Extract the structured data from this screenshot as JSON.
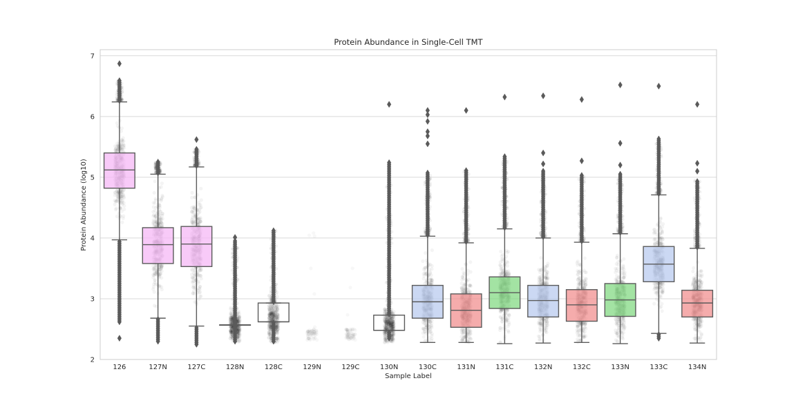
{
  "chart_data": {
    "type": "box",
    "title": "Protein Abundance in Single-Cell TMT",
    "xlabel": "Sample Label",
    "ylabel": "Protein Abundance (log10)",
    "ylim": [
      2,
      7.1
    ],
    "yticks": [
      "2",
      "3",
      "4",
      "5",
      "6",
      "7"
    ],
    "grid": "horizontal",
    "categories": [
      "126",
      "127N",
      "127C",
      "128N",
      "128C",
      "129N",
      "129C",
      "130N",
      "130C",
      "131N",
      "131C",
      "132N",
      "132C",
      "133N",
      "133C",
      "134N"
    ],
    "colors": {
      "pink": "#f5b8f5",
      "blue": "#b9cbef",
      "red": "#f29090",
      "green": "#84d984",
      "edge": "#5a5a5a",
      "grid": "#d9d9d9",
      "frame": "#cccccc",
      "points": "#000000"
    },
    "boxes": [
      {
        "label": "126",
        "fill": "pink",
        "q1": 4.82,
        "median": 5.12,
        "q3": 5.4,
        "whisker_low": 3.97,
        "whisker_high": 6.24,
        "outliers_high_from": 6.26,
        "outliers_high_to": 6.6,
        "outliers_low_from": 2.62,
        "outliers_low_to": 3.95,
        "extreme_points": [
          6.87,
          2.35
        ],
        "density_center": 5.1,
        "density_spread": 0.3
      },
      {
        "label": "127N",
        "fill": "pink",
        "q1": 3.58,
        "median": 3.89,
        "q3": 4.17,
        "whisker_low": 2.68,
        "whisker_high": 5.05,
        "outliers_high_from": 5.07,
        "outliers_high_to": 5.26,
        "outliers_low_from": 2.3,
        "outliers_low_to": 2.66,
        "extreme_points": [],
        "density_center": 3.88,
        "density_spread": 0.35
      },
      {
        "label": "127C",
        "fill": "pink",
        "q1": 3.53,
        "median": 3.9,
        "q3": 4.19,
        "whisker_low": 2.55,
        "whisker_high": 5.17,
        "outliers_high_from": 5.19,
        "outliers_high_to": 5.47,
        "outliers_low_from": 2.25,
        "outliers_low_to": 2.53,
        "extreme_points": [
          5.62
        ],
        "density_center": 3.88,
        "density_spread": 0.38
      },
      {
        "label": "128N",
        "fill": "none",
        "q1": 2.57,
        "median": 2.57,
        "q3": 2.57,
        "whisker_low": 2.57,
        "whisker_high": 2.57,
        "outliers_high_from": 2.6,
        "outliers_high_to": 3.95,
        "outliers_low_from": 2.3,
        "outliers_low_to": 2.54,
        "extreme_points": [
          4.01
        ],
        "density_center": 2.55,
        "density_spread": 0.12
      },
      {
        "label": "128C",
        "fill": "none",
        "q1": 2.62,
        "median": 2.62,
        "q3": 2.93,
        "whisker_low": 2.62,
        "whisker_high": 2.93,
        "outliers_high_from": 2.95,
        "outliers_high_to": 4.13,
        "outliers_low_from": 2.3,
        "outliers_low_to": 2.6,
        "extreme_points": [],
        "density_center": 2.62,
        "density_spread": 0.18
      },
      {
        "label": "129N",
        "fill": "none",
        "q1": null,
        "median": null,
        "q3": null,
        "whisker_low": null,
        "whisker_high": null,
        "outliers_high_from": null,
        "outliers_high_to": null,
        "outliers_low_from": null,
        "outliers_low_to": null,
        "extreme_points": [],
        "density_center": 2.4,
        "density_spread": 0.08
      },
      {
        "label": "129C",
        "fill": "none",
        "q1": null,
        "median": null,
        "q3": null,
        "whisker_low": null,
        "whisker_high": null,
        "outliers_high_from": null,
        "outliers_high_to": null,
        "outliers_low_from": null,
        "outliers_low_to": null,
        "extreme_points": [],
        "density_center": 2.4,
        "density_spread": 0.08
      },
      {
        "label": "130N",
        "fill": "none",
        "q1": 2.48,
        "median": 2.48,
        "q3": 2.73,
        "whisker_low": 2.48,
        "whisker_high": 2.73,
        "outliers_high_from": 2.75,
        "outliers_high_to": 5.25,
        "outliers_low_from": 2.35,
        "outliers_low_to": 2.46,
        "extreme_points": [
          6.2
        ],
        "density_center": 2.55,
        "density_spread": 0.15
      },
      {
        "label": "130C",
        "fill": "blue",
        "q1": 2.68,
        "median": 2.95,
        "q3": 3.22,
        "whisker_low": 2.28,
        "whisker_high": 4.03,
        "outliers_high_from": 4.05,
        "outliers_high_to": 5.08,
        "outliers_low_from": null,
        "outliers_low_to": null,
        "extreme_points": [
          5.55,
          5.68,
          5.75,
          5.92,
          6.03,
          6.1
        ],
        "density_center": 2.95,
        "density_spread": 0.28
      },
      {
        "label": "131N",
        "fill": "red",
        "q1": 2.53,
        "median": 2.81,
        "q3": 3.08,
        "whisker_low": 2.28,
        "whisker_high": 3.92,
        "outliers_high_from": 3.94,
        "outliers_high_to": 5.12,
        "outliers_low_from": null,
        "outliers_low_to": null,
        "extreme_points": [
          6.1
        ],
        "density_center": 2.8,
        "density_spread": 0.27
      },
      {
        "label": "131C",
        "fill": "green",
        "q1": 2.84,
        "median": 3.1,
        "q3": 3.36,
        "whisker_low": 2.26,
        "whisker_high": 4.15,
        "outliers_high_from": 4.17,
        "outliers_high_to": 5.35,
        "outliers_low_from": null,
        "outliers_low_to": null,
        "extreme_points": [
          6.32
        ],
        "density_center": 3.1,
        "density_spread": 0.26
      },
      {
        "label": "132N",
        "fill": "blue",
        "q1": 2.7,
        "median": 2.97,
        "q3": 3.22,
        "whisker_low": 2.27,
        "whisker_high": 4.0,
        "outliers_high_from": 4.02,
        "outliers_high_to": 5.1,
        "outliers_low_from": null,
        "outliers_low_to": null,
        "extreme_points": [
          5.22,
          5.4,
          6.34
        ],
        "density_center": 2.97,
        "density_spread": 0.26
      },
      {
        "label": "132C",
        "fill": "red",
        "q1": 2.63,
        "median": 2.9,
        "q3": 3.15,
        "whisker_low": 2.28,
        "whisker_high": 3.93,
        "outliers_high_from": 3.95,
        "outliers_high_to": 5.05,
        "outliers_low_from": null,
        "outliers_low_to": null,
        "extreme_points": [
          5.27,
          6.28
        ],
        "density_center": 2.9,
        "density_spread": 0.26
      },
      {
        "label": "133N",
        "fill": "green",
        "q1": 2.71,
        "median": 2.98,
        "q3": 3.25,
        "whisker_low": 2.26,
        "whisker_high": 4.07,
        "outliers_high_from": 4.09,
        "outliers_high_to": 5.05,
        "outliers_low_from": null,
        "outliers_low_to": null,
        "extreme_points": [
          5.2,
          5.56,
          6.52
        ],
        "density_center": 2.98,
        "density_spread": 0.27
      },
      {
        "label": "133C",
        "fill": "blue",
        "q1": 3.28,
        "median": 3.57,
        "q3": 3.86,
        "whisker_low": 2.43,
        "whisker_high": 4.71,
        "outliers_high_from": 4.73,
        "outliers_high_to": 5.65,
        "outliers_low_from": 2.35,
        "outliers_low_to": 2.41,
        "extreme_points": [
          6.5
        ],
        "density_center": 3.57,
        "density_spread": 0.3
      },
      {
        "label": "134N",
        "fill": "red",
        "q1": 2.7,
        "median": 2.93,
        "q3": 3.14,
        "whisker_low": 2.27,
        "whisker_high": 3.83,
        "outliers_high_from": 3.85,
        "outliers_high_to": 4.95,
        "outliers_low_from": null,
        "outliers_low_to": null,
        "extreme_points": [
          5.1,
          5.23,
          6.2
        ],
        "density_center": 2.93,
        "density_spread": 0.24
      }
    ]
  }
}
